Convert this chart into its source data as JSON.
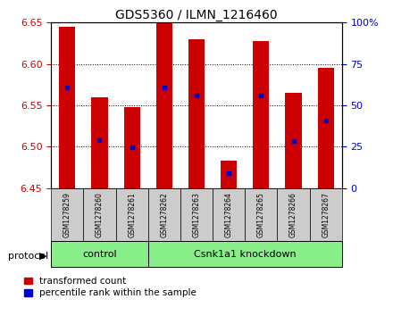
{
  "title": "GDS5360 / ILMN_1216460",
  "samples": [
    "GSM1278259",
    "GSM1278260",
    "GSM1278261",
    "GSM1278262",
    "GSM1278263",
    "GSM1278264",
    "GSM1278265",
    "GSM1278266",
    "GSM1278267"
  ],
  "bar_tops": [
    6.645,
    6.56,
    6.548,
    6.65,
    6.63,
    6.483,
    6.628,
    6.565,
    6.595
  ],
  "bar_bottom": 6.45,
  "percentile_values": [
    6.572,
    6.508,
    6.499,
    6.572,
    6.562,
    6.468,
    6.562,
    6.507,
    6.532
  ],
  "ylim_left": [
    6.45,
    6.65
  ],
  "ylim_right": [
    0,
    100
  ],
  "yticks_left": [
    6.45,
    6.5,
    6.55,
    6.6,
    6.65
  ],
  "yticks_right": [
    0,
    25,
    50,
    75,
    100
  ],
  "bar_color": "#cc0000",
  "blue_color": "#0000cc",
  "ctrl_n": 3,
  "kd_n": 6,
  "control_label": "control",
  "knockdown_label": "Csnk1a1 knockdown",
  "protocol_label": "protocol",
  "legend_red": "transformed count",
  "legend_blue": "percentile rank within the sample",
  "group_bg_color": "#88ee88",
  "tick_label_color_left": "#cc0000",
  "tick_label_color_right": "#0000cc",
  "xtick_bg_color": "#cccccc",
  "bar_width": 0.5
}
